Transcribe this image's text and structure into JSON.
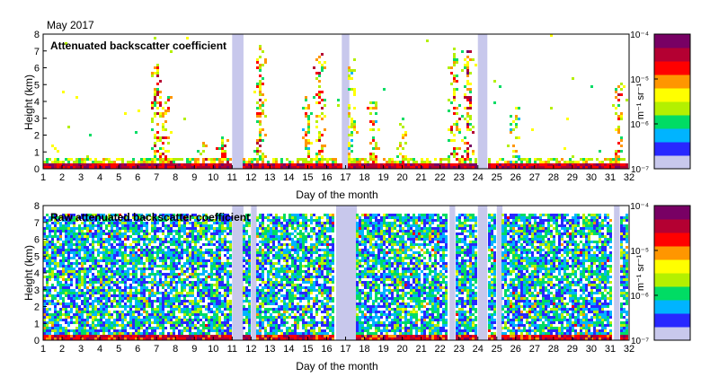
{
  "figure_title": "May 2017",
  "chart_data": [
    {
      "type": "heatmap",
      "title": "Attenuated backscatter coefficient",
      "xlabel": "Day of the month",
      "ylabel": "Height (km)",
      "xlim": [
        1,
        32
      ],
      "ylim": [
        0,
        8
      ],
      "xticks": [
        1,
        2,
        3,
        4,
        5,
        6,
        7,
        8,
        9,
        10,
        11,
        12,
        13,
        14,
        15,
        16,
        17,
        18,
        19,
        20,
        21,
        22,
        23,
        24,
        25,
        26,
        27,
        28,
        29,
        30,
        31,
        32
      ],
      "yticks": [
        0,
        1,
        2,
        3,
        4,
        5,
        6,
        7,
        8
      ],
      "colorbar": {
        "label": "m⁻¹ sr⁻¹",
        "scale": "log",
        "range": [
          1e-07,
          0.0001
        ],
        "tick_labels": [
          "10⁻⁴",
          "10⁻⁵",
          "10⁻⁶",
          "10⁻⁷"
        ],
        "colormap": [
          "#c8c8ec",
          "#2828ff",
          "#00b4ff",
          "#00dc64",
          "#b4f000",
          "#ffff00",
          "#ff9600",
          "#ff0000",
          "#b40032",
          "#780064"
        ]
      },
      "columns": [
        {
          "day": 1.0,
          "bl_top": 0.4,
          "intensity": 0.9
        },
        {
          "day": 3.0,
          "bl_top": 0.7,
          "intensity": 0.9
        },
        {
          "day": 6.5,
          "bl_top": 0.5,
          "intensity": 0.8
        },
        {
          "day": 7.0,
          "bl_top": 6.3,
          "intensity": 0.9
        },
        {
          "day": 7.5,
          "bl_top": 4.5,
          "intensity": 0.9
        },
        {
          "day": 9.5,
          "bl_top": 1.6,
          "intensity": 1.0
        },
        {
          "day": 10.5,
          "bl_top": 2.0,
          "intensity": 0.9
        },
        {
          "day": 12.5,
          "bl_top": 7.3,
          "intensity": 0.9
        },
        {
          "day": 15.0,
          "bl_top": 4.5,
          "intensity": 0.8
        },
        {
          "day": 15.7,
          "bl_top": 7.0,
          "intensity": 0.9
        },
        {
          "day": 17.3,
          "bl_top": 6.5,
          "intensity": 0.7
        },
        {
          "day": 18.5,
          "bl_top": 4.0,
          "intensity": 0.8
        },
        {
          "day": 20.0,
          "bl_top": 3.0,
          "intensity": 0.8
        },
        {
          "day": 22.8,
          "bl_top": 7.2,
          "intensity": 0.9
        },
        {
          "day": 23.5,
          "bl_top": 7.0,
          "intensity": 1.0
        },
        {
          "day": 26.0,
          "bl_top": 4.0,
          "intensity": 0.7
        },
        {
          "day": 29.0,
          "bl_top": 1.0,
          "intensity": 0.6
        },
        {
          "day": 31.5,
          "bl_top": 5.2,
          "intensity": 0.9
        }
      ],
      "no_data_days": [
        [
          11.0,
          11.6
        ],
        [
          16.8,
          17.2
        ],
        [
          24.0,
          24.5
        ]
      ]
    },
    {
      "type": "heatmap",
      "title": "Raw attenuated backscatter coefficient",
      "xlabel": "Day of the month",
      "ylabel": "Height (km)",
      "xlim": [
        1,
        32
      ],
      "ylim": [
        0,
        8
      ],
      "xticks": [
        1,
        2,
        3,
        4,
        5,
        6,
        7,
        8,
        9,
        10,
        11,
        12,
        13,
        14,
        15,
        16,
        17,
        18,
        19,
        20,
        21,
        22,
        23,
        24,
        25,
        26,
        27,
        28,
        29,
        30,
        31,
        32
      ],
      "yticks": [
        0,
        1,
        2,
        3,
        4,
        5,
        6,
        7,
        8
      ],
      "colorbar": {
        "label": "m⁻¹ sr⁻¹",
        "scale": "log",
        "range": [
          1e-07,
          0.0001
        ],
        "tick_labels": [
          "10⁻⁴",
          "10⁻⁵",
          "10⁻⁶",
          "10⁻⁷"
        ],
        "colormap": [
          "#c8c8ec",
          "#2828ff",
          "#00b4ff",
          "#00dc64",
          "#b4f000",
          "#ffff00",
          "#ff9600",
          "#ff0000",
          "#b40032",
          "#780064"
        ]
      },
      "signal_top": 7.5,
      "no_data_days": [
        [
          11.0,
          11.6
        ],
        [
          12.0,
          12.3
        ],
        [
          16.5,
          17.6
        ],
        [
          22.5,
          22.8
        ],
        [
          24.0,
          24.5
        ],
        [
          25.0,
          25.3
        ],
        [
          31.2,
          31.5
        ]
      ]
    }
  ]
}
